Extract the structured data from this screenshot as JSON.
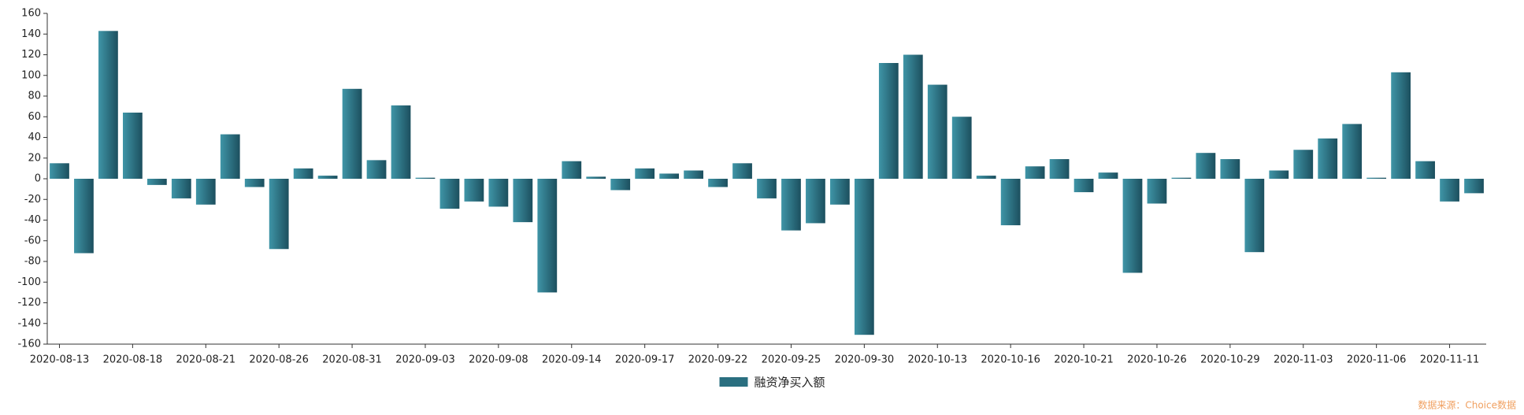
{
  "chart_data": {
    "type": "bar",
    "categories": [
      "2020-08-13",
      null,
      null,
      "2020-08-18",
      null,
      null,
      "2020-08-21",
      null,
      null,
      "2020-08-26",
      null,
      null,
      "2020-08-31",
      null,
      null,
      "2020-09-03",
      null,
      null,
      "2020-09-08",
      null,
      null,
      "2020-09-14",
      null,
      null,
      "2020-09-17",
      null,
      null,
      "2020-09-22",
      null,
      null,
      "2020-09-25",
      null,
      null,
      "2020-09-30",
      null,
      null,
      "2020-10-13",
      null,
      null,
      "2020-10-16",
      null,
      null,
      "2020-10-21",
      null,
      null,
      "2020-10-26",
      null,
      null,
      "2020-10-29",
      null,
      null,
      "2020-11-03",
      null,
      null,
      "2020-11-06",
      null,
      null,
      "2020-11-11",
      null
    ],
    "series": [
      {
        "name": "融资净买入额",
        "color": "#2a6f80",
        "values": [
          15,
          -72,
          143,
          64,
          -6,
          -19,
          -25,
          43,
          -8,
          -68,
          10,
          3,
          87,
          18,
          71,
          1,
          -29,
          -22,
          -27,
          -42,
          -110,
          17,
          2,
          -11,
          10,
          5,
          8,
          -8,
          15,
          -19,
          -50,
          -43,
          -25,
          -151,
          112,
          120,
          91,
          60,
          3,
          -45,
          12,
          19,
          -13,
          6,
          -91,
          -24,
          1,
          25,
          19,
          -71,
          8,
          28,
          39,
          53,
          1,
          103,
          17,
          -22,
          -14
        ]
      }
    ],
    "ylim": [
      -160,
      160
    ],
    "yticks": [
      -160,
      -140,
      -120,
      -100,
      -80,
      -60,
      -40,
      -20,
      0,
      20,
      40,
      60,
      80,
      100,
      120,
      140,
      160
    ],
    "grid": false,
    "legend": "bottom",
    "source": "数据来源：Choice数据"
  }
}
